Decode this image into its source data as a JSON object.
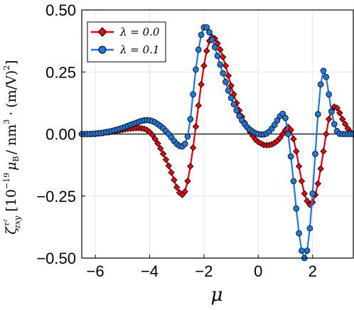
{
  "chart_data": {
    "type": "line",
    "xlabel": "μ",
    "ylabel": "ζ_{zxy}^{τ²}  [10^{-19} μ_B / nm^3 · (m/V)^2]",
    "ylabel_parts": {
      "zeta": "ζ",
      "sup": "τ²",
      "sub": "zxy",
      "bracket_open": "[",
      "ten": "10",
      "exp": "−19",
      "mu": "μ",
      "muB_sub": "B",
      "per_nm": "/ nm",
      "nm_exp": "3",
      "dot": "·",
      "mv": "(m/V)",
      "mv_exp": "2",
      "bracket_close": "]"
    },
    "xlim": [
      -6.5,
      3.5
    ],
    "ylim": [
      -0.5,
      0.5
    ],
    "xticks": [
      -6,
      -4,
      -2,
      0,
      2
    ],
    "xtick_labels": [
      "−6",
      "−4",
      "−2",
      "0",
      "2"
    ],
    "yticks": [
      0.5,
      0.25,
      0,
      -0.25,
      -0.5
    ],
    "ytick_labels": [
      "0.50",
      "0.25",
      "0.00",
      "−0.25",
      "−0.50"
    ],
    "grid": true,
    "zero_line": true,
    "legend_position": "top-left",
    "series": [
      {
        "name": "λ = 0.0",
        "label_text": "λ = 0.0",
        "color": "#e8000b",
        "marker": "diamond",
        "x": [
          -6.5,
          -6.4,
          -6.3,
          -6.2,
          -6.1,
          -6.0,
          -5.9,
          -5.8,
          -5.7,
          -5.6,
          -5.5,
          -5.4,
          -5.3,
          -5.2,
          -5.1,
          -5.0,
          -4.9,
          -4.8,
          -4.7,
          -4.6,
          -4.5,
          -4.4,
          -4.3,
          -4.2,
          -4.1,
          -4.0,
          -3.9,
          -3.8,
          -3.7,
          -3.6,
          -3.5,
          -3.4,
          -3.3,
          -3.2,
          -3.1,
          -3.0,
          -2.9,
          -2.8,
          -2.7,
          -2.6,
          -2.5,
          -2.4,
          -2.3,
          -2.2,
          -2.1,
          -2.0,
          -1.9,
          -1.8,
          -1.7,
          -1.6,
          -1.5,
          -1.4,
          -1.3,
          -1.2,
          -1.1,
          -1.0,
          -0.9,
          -0.8,
          -0.7,
          -0.6,
          -0.5,
          -0.4,
          -0.3,
          -0.2,
          -0.1,
          0.0,
          0.1,
          0.2,
          0.3,
          0.4,
          0.5,
          0.6,
          0.7,
          0.8,
          0.9,
          1.0,
          1.1,
          1.2,
          1.3,
          1.4,
          1.5,
          1.6,
          1.7,
          1.8,
          1.9,
          2.0,
          2.1,
          2.2,
          2.3,
          2.4,
          2.5,
          2.6,
          2.7,
          2.8,
          2.9,
          3.0,
          3.1,
          3.2,
          3.3,
          3.4,
          3.5
        ],
        "y": [
          0.0,
          0.0,
          0.0,
          0.0,
          0.0,
          0.0,
          0.002,
          0.003,
          0.004,
          0.006,
          0.007,
          0.009,
          0.011,
          0.013,
          0.015,
          0.017,
          0.019,
          0.021,
          0.022,
          0.023,
          0.024,
          0.024,
          0.023,
          0.021,
          0.016,
          0.008,
          -0.004,
          -0.02,
          -0.038,
          -0.058,
          -0.08,
          -0.103,
          -0.128,
          -0.155,
          -0.185,
          -0.215,
          -0.236,
          -0.245,
          -0.232,
          -0.19,
          -0.13,
          -0.055,
          0.03,
          0.115,
          0.2,
          0.275,
          0.335,
          0.375,
          0.39,
          0.385,
          0.365,
          0.34,
          0.31,
          0.275,
          0.235,
          0.195,
          0.16,
          0.125,
          0.095,
          0.07,
          0.045,
          0.025,
          0.008,
          -0.008,
          -0.022,
          -0.032,
          -0.038,
          -0.044,
          -0.045,
          -0.044,
          -0.042,
          -0.036,
          -0.028,
          -0.016,
          0.0,
          0.016,
          0.028,
          0.016,
          -0.02,
          -0.07,
          -0.13,
          -0.19,
          -0.24,
          -0.27,
          -0.285,
          -0.275,
          -0.245,
          -0.2,
          -0.14,
          -0.07,
          0.0,
          0.06,
          0.095,
          0.11,
          0.105,
          0.085,
          0.06,
          0.04,
          0.022,
          0.008,
          0.0
        ]
      },
      {
        "name": "λ = 0.1",
        "label_text": "λ = 0.1",
        "color": "#1f78d8",
        "marker": "circle",
        "x": [
          -6.5,
          -6.4,
          -6.3,
          -6.2,
          -6.1,
          -6.0,
          -5.9,
          -5.8,
          -5.7,
          -5.6,
          -5.5,
          -5.4,
          -5.3,
          -5.2,
          -5.1,
          -5.0,
          -4.9,
          -4.8,
          -4.7,
          -4.6,
          -4.5,
          -4.4,
          -4.3,
          -4.2,
          -4.1,
          -4.0,
          -3.9,
          -3.8,
          -3.7,
          -3.6,
          -3.5,
          -3.4,
          -3.3,
          -3.2,
          -3.1,
          -3.0,
          -2.9,
          -2.8,
          -2.7,
          -2.6,
          -2.5,
          -2.4,
          -2.3,
          -2.2,
          -2.1,
          -2.0,
          -1.9,
          -1.8,
          -1.7,
          -1.6,
          -1.5,
          -1.4,
          -1.3,
          -1.2,
          -1.1,
          -1.0,
          -0.9,
          -0.8,
          -0.7,
          -0.6,
          -0.5,
          -0.4,
          -0.3,
          -0.2,
          -0.1,
          0.0,
          0.1,
          0.2,
          0.3,
          0.4,
          0.5,
          0.6,
          0.7,
          0.8,
          0.9,
          1.0,
          1.1,
          1.2,
          1.3,
          1.4,
          1.5,
          1.6,
          1.7,
          1.8,
          1.9,
          2.0,
          2.1,
          2.2,
          2.3,
          2.4,
          2.5,
          2.6,
          2.7,
          2.8,
          2.9,
          3.0,
          3.1,
          3.2,
          3.3,
          3.4,
          3.5
        ],
        "y": [
          0.0,
          0.0,
          0.0,
          0.0,
          0.001,
          0.002,
          0.003,
          0.004,
          0.006,
          0.008,
          0.01,
          0.012,
          0.015,
          0.018,
          0.021,
          0.025,
          0.029,
          0.033,
          0.037,
          0.041,
          0.045,
          0.049,
          0.053,
          0.055,
          0.056,
          0.055,
          0.052,
          0.047,
          0.04,
          0.032,
          0.023,
          0.012,
          0.0,
          -0.014,
          -0.028,
          -0.04,
          -0.048,
          -0.05,
          -0.04,
          -0.01,
          0.06,
          0.16,
          0.26,
          0.34,
          0.4,
          0.43,
          0.43,
          0.41,
          0.38,
          0.35,
          0.315,
          0.28,
          0.245,
          0.21,
          0.175,
          0.145,
          0.12,
          0.095,
          0.073,
          0.055,
          0.04,
          0.027,
          0.017,
          0.009,
          0.003,
          0.0,
          -0.002,
          -0.002,
          0.002,
          0.01,
          0.022,
          0.037,
          0.055,
          0.072,
          0.082,
          0.065,
          0.0,
          -0.09,
          -0.19,
          -0.3,
          -0.4,
          -0.47,
          -0.5,
          -0.47,
          -0.38,
          -0.24,
          -0.08,
          0.08,
          0.2,
          0.255,
          0.23,
          0.16,
          0.09,
          0.04,
          0.012,
          0.001,
          0.0,
          0.0,
          0.0,
          0.0,
          0.0
        ]
      }
    ]
  },
  "colors": {
    "grid": "#e6e6e6",
    "axis": "#000000",
    "legend_border": "#000000"
  }
}
